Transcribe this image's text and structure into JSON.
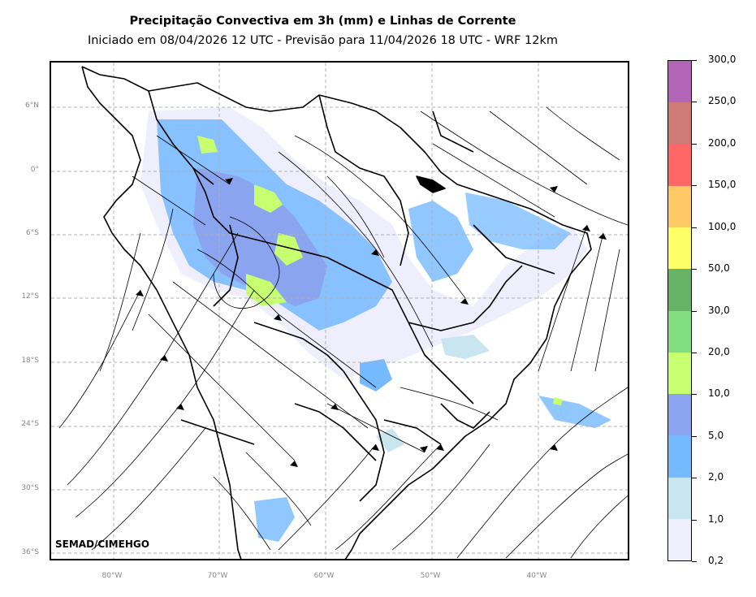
{
  "title": "Precipitação Convectiva em 3h (mm) e Linhas de Corrente",
  "subtitle": "Iniciado em 08/04/2026 12 UTC - Previsão para 11/04/2026 18 UTC - WRF 12km",
  "credit": "SEMAD/CIMEHGO",
  "lat_labels": [
    "6°N",
    "0°",
    "6°S",
    "12°S",
    "18°S",
    "24°S",
    "30°S",
    "36°S"
  ],
  "lon_labels": [
    "80°W",
    "70°W",
    "60°W",
    "50°W",
    "40°W"
  ],
  "colorbar": {
    "labels": [
      "300,0",
      "250,0",
      "200,0",
      "150,0",
      "100,0",
      "50,0",
      "30,0",
      "20,0",
      "10,0",
      "5,0",
      "2,0",
      "1,0",
      "0,2"
    ],
    "colors": [
      "#b366b8",
      "#d07a78",
      "#ff6666",
      "#ffc966",
      "#ffff66",
      "#66b366",
      "#80dd80",
      "#c8ff70",
      "#8aa4f0",
      "#75b9ff",
      "#c9e6f0",
      "#eeeefc"
    ]
  },
  "colors": {
    "coast": "#000000",
    "grid": "#b0b0b0",
    "streamline": "#000000"
  }
}
